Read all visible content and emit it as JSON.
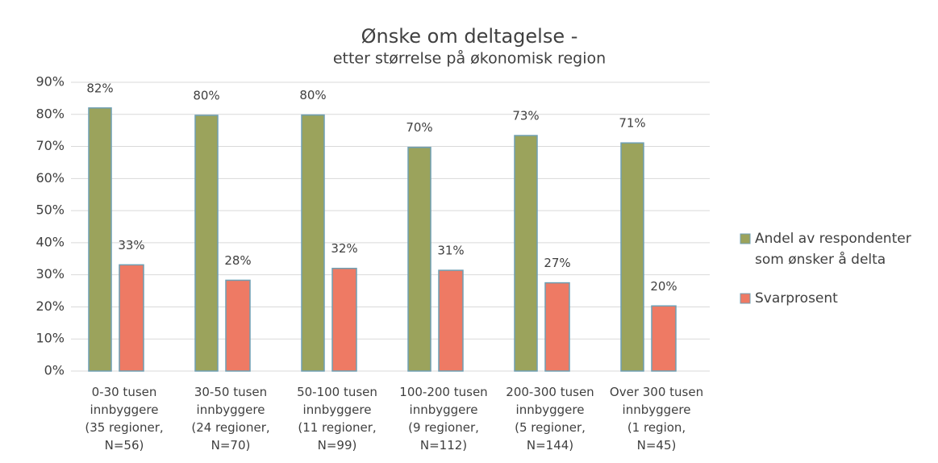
{
  "chart_data": {
    "type": "bar",
    "title": "Ønske om deltagelse -",
    "subtitle": "etter størrelse på økonomisk region",
    "categories": [
      [
        "0-30 tusen",
        "innbyggere",
        "(35 regioner,",
        "N=56)"
      ],
      [
        "30-50 tusen",
        "innbyggere",
        "(24 regioner,",
        "N=70)"
      ],
      [
        "50-100 tusen",
        "innbyggere",
        "(11 regioner,",
        "N=99)"
      ],
      [
        "100-200 tusen",
        "innbyggere",
        "(9 regioner,",
        "N=112)"
      ],
      [
        "200-300 tusen",
        "innbyggere",
        "(5 regioner,",
        "N=144)"
      ],
      [
        "Over 300 tusen",
        "innbyggere",
        "(1 region,",
        "N=45)"
      ]
    ],
    "series": [
      {
        "name": "Andel av respondenter som ønsker å delta",
        "color": "#9ba35c",
        "values": [
          82,
          79.7,
          79.8,
          69.7,
          73.4,
          71.1
        ],
        "value_labels": [
          "82%",
          "80%",
          "80%",
          "70%",
          "73%",
          "71%"
        ]
      },
      {
        "name": "Svarprosent",
        "color": "#ee7a64",
        "values": [
          33.1,
          28.3,
          32,
          31.4,
          27.5,
          20.3
        ],
        "value_labels": [
          "33%",
          "28%",
          "32%",
          "31%",
          "27%",
          "20%"
        ]
      }
    ],
    "ylim": [
      0,
      90
    ],
    "yticks": [
      {
        "value": 0,
        "label": "0%"
      },
      {
        "value": 10,
        "label": "10%"
      },
      {
        "value": 20,
        "label": "20%"
      },
      {
        "value": 30,
        "label": "30%"
      },
      {
        "value": 40,
        "label": "40%"
      },
      {
        "value": 50,
        "label": "50%"
      },
      {
        "value": 60,
        "label": "60%"
      },
      {
        "value": 70,
        "label": "70%"
      },
      {
        "value": 80,
        "label": "80%"
      },
      {
        "value": 90,
        "label": "90%"
      }
    ],
    "grid": true,
    "legend": "right"
  }
}
